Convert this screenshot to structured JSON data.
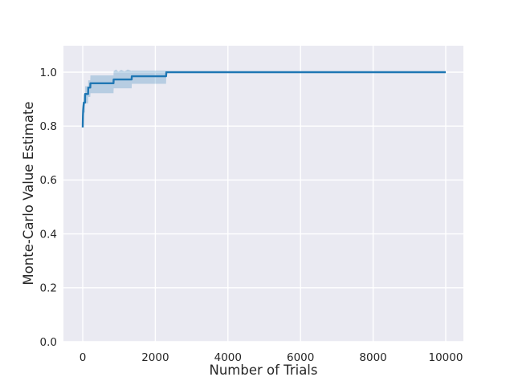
{
  "figure": {
    "background": "#ffffff"
  },
  "chart_data": {
    "type": "line",
    "title": "",
    "xlabel": "Number of Trials",
    "ylabel": "Monte-Carlo Value Estimate",
    "xlim": [
      -531,
      10487
    ],
    "ylim": [
      0,
      1.0982
    ],
    "grid": true,
    "grid_style": "seaborn-darkgrid",
    "legend_position": "none",
    "styles": {
      "axes_background": "#eaeaf2",
      "grid_color": "#ffffff",
      "text_color": "#262626",
      "line_color": "#1f77b4",
      "band_color": "#1f77b4",
      "band_opacity": 0.25
    },
    "x_ticks": [
      {
        "value": 0,
        "label": "0"
      },
      {
        "value": 2000,
        "label": "2000"
      },
      {
        "value": 4000,
        "label": "4000"
      },
      {
        "value": 6000,
        "label": "6000"
      },
      {
        "value": 8000,
        "label": "8000"
      },
      {
        "value": 10000,
        "label": "10000"
      }
    ],
    "y_ticks": [
      {
        "value": 0.0,
        "label": "0.0"
      },
      {
        "value": 0.2,
        "label": "0.2"
      },
      {
        "value": 0.4,
        "label": "0.4"
      },
      {
        "value": 0.6,
        "label": "0.6"
      },
      {
        "value": 0.8,
        "label": "0.8"
      },
      {
        "value": 1.0,
        "label": "1.0"
      }
    ],
    "series": [
      {
        "name": "monte-carlo-value-estimate",
        "color": "#1f77b4",
        "line_width": 2.4,
        "points": [
          [
            0,
            0.795
          ],
          [
            6,
            0.838
          ],
          [
            12,
            0.858
          ],
          [
            20,
            0.873
          ],
          [
            30,
            0.887
          ],
          [
            64,
            0.887
          ],
          [
            66,
            0.919
          ],
          [
            148,
            0.919
          ],
          [
            152,
            0.943
          ],
          [
            208,
            0.943
          ],
          [
            212,
            0.959
          ],
          [
            848,
            0.959
          ],
          [
            852,
            0.973
          ],
          [
            1348,
            0.973
          ],
          [
            1352,
            0.985
          ],
          [
            2296,
            0.985
          ],
          [
            2304,
            1.0
          ],
          [
            10000,
            1.0
          ]
        ]
      }
    ],
    "band": {
      "name": "confidence-interval",
      "color": "#1f77b4",
      "opacity": 0.25,
      "points": [
        [
          0,
          0.788,
          0.802
        ],
        [
          6,
          0.806,
          0.868
        ],
        [
          12,
          0.822,
          0.89
        ],
        [
          20,
          0.836,
          0.904
        ],
        [
          30,
          0.85,
          0.916
        ],
        [
          64,
          0.85,
          0.916
        ],
        [
          66,
          0.884,
          0.948
        ],
        [
          148,
          0.884,
          0.948
        ],
        [
          152,
          0.908,
          0.97
        ],
        [
          208,
          0.908,
          0.97
        ],
        [
          212,
          0.922,
          0.988
        ],
        [
          848,
          0.922,
          0.988
        ],
        [
          852,
          0.94,
          1.004
        ],
        [
          920,
          0.94,
          1.01
        ],
        [
          980,
          0.94,
          1.002
        ],
        [
          1060,
          0.94,
          1.009
        ],
        [
          1150,
          0.94,
          1.003
        ],
        [
          1240,
          0.94,
          1.01
        ],
        [
          1348,
          0.94,
          1.005
        ],
        [
          1352,
          0.957,
          1.006
        ],
        [
          2296,
          0.957,
          1.006
        ],
        [
          2304,
          1.0,
          1.0
        ],
        [
          10000,
          1.0,
          1.0
        ]
      ]
    }
  }
}
